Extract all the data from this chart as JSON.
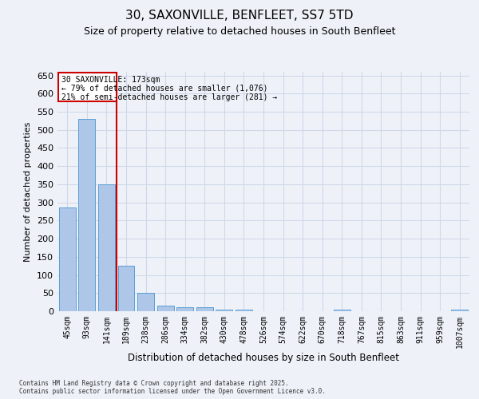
{
  "title1": "30, SAXONVILLE, BENFLEET, SS7 5TD",
  "title2": "Size of property relative to detached houses in South Benfleet",
  "xlabel": "Distribution of detached houses by size in South Benfleet",
  "ylabel": "Number of detached properties",
  "categories": [
    "45sqm",
    "93sqm",
    "141sqm",
    "189sqm",
    "238sqm",
    "286sqm",
    "334sqm",
    "382sqm",
    "430sqm",
    "478sqm",
    "526sqm",
    "574sqm",
    "622sqm",
    "670sqm",
    "718sqm",
    "767sqm",
    "815sqm",
    "863sqm",
    "911sqm",
    "959sqm",
    "1007sqm"
  ],
  "values": [
    285,
    530,
    350,
    125,
    50,
    15,
    10,
    10,
    5,
    5,
    0,
    0,
    0,
    0,
    5,
    0,
    0,
    0,
    0,
    0,
    5
  ],
  "bar_color": "#aec6e8",
  "bar_edge_color": "#5a9fd4",
  "grid_color": "#d0d8e8",
  "background_color": "#eef2f8",
  "annotation_text_line1": "30 SAXONVILLE: 173sqm",
  "annotation_text_line2": "← 79% of detached houses are smaller (1,076)",
  "annotation_text_line3": "21% of semi-detached houses are larger (281) →",
  "red_line_color": "#cc0000",
  "ylim": [
    0,
    660
  ],
  "yticks": [
    0,
    50,
    100,
    150,
    200,
    250,
    300,
    350,
    400,
    450,
    500,
    550,
    600,
    650
  ],
  "footer_line1": "Contains HM Land Registry data © Crown copyright and database right 2025.",
  "footer_line2": "Contains public sector information licensed under the Open Government Licence v3.0."
}
